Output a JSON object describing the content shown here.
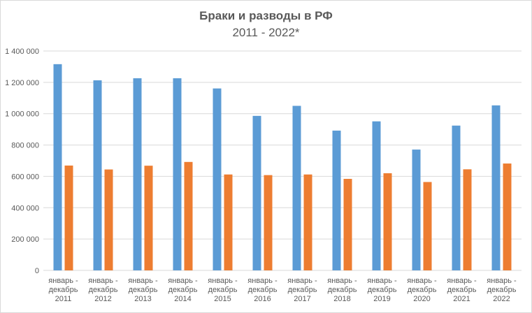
{
  "chart_data": {
    "type": "bar",
    "title": "Браки и разводы в РФ",
    "subtitle": "2011 - 2022*",
    "categories": [
      [
        "январь -",
        "декабрь",
        "2011"
      ],
      [
        "январь -",
        "декабрь",
        "2012"
      ],
      [
        "январь -",
        "декабрь",
        "2013"
      ],
      [
        "январь -",
        "декабрь",
        "2014"
      ],
      [
        "январь -",
        "декабрь",
        "2015"
      ],
      [
        "январь -",
        "декабрь",
        "2016"
      ],
      [
        "январь -",
        "декабрь",
        "2017"
      ],
      [
        "январь -",
        "декабрь",
        "2018"
      ],
      [
        "январь -",
        "декабрь",
        "2019"
      ],
      [
        "январь -",
        "декабрь",
        "2020"
      ],
      [
        "январь -",
        "декабрь",
        "2021"
      ],
      [
        "январь -",
        "декабрь",
        "2022"
      ]
    ],
    "series": [
      {
        "color": "#5b9bd5",
        "values": [
          1316000,
          1213000,
          1226000,
          1226000,
          1161000,
          986000,
          1050000,
          892000,
          951000,
          771000,
          924000,
          1053000
        ]
      },
      {
        "color": "#ed7d31",
        "values": [
          669000,
          644000,
          668000,
          692000,
          612000,
          608000,
          612000,
          584000,
          620000,
          564000,
          645000,
          682000
        ]
      }
    ],
    "ylim": [
      0,
      1400000
    ],
    "yticks": [
      "0",
      "200 000",
      "400 000",
      "600 000",
      "800 000",
      "1 000 000",
      "1 200 000",
      "1 400 000"
    ],
    "grid": true,
    "gridcolor": "#d9d9d9",
    "axiscolor": "#d9d9d9",
    "legend": "none"
  }
}
